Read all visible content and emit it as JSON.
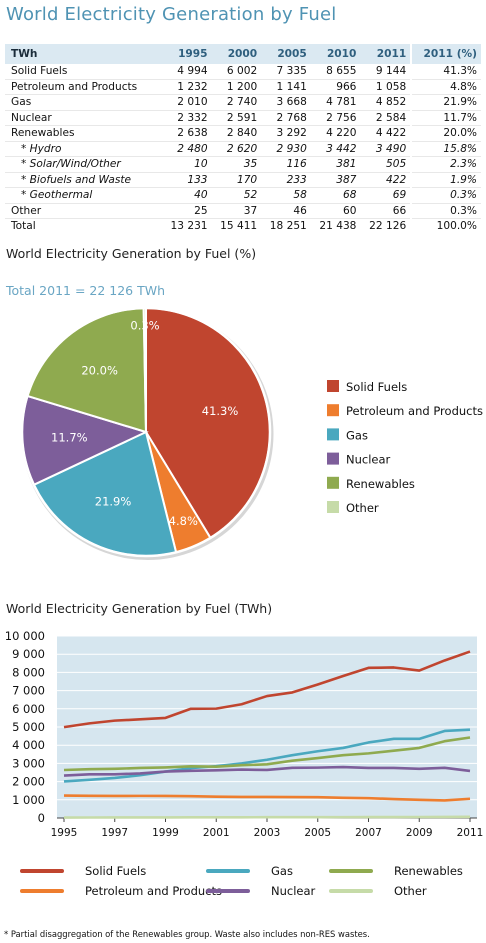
{
  "title": "World Electricity Generation by Fuel",
  "table": {
    "header": [
      "TWh",
      "1995",
      "2000",
      "2005",
      "2010",
      "2011",
      "2011 (%)"
    ],
    "rows": [
      {
        "label": "Solid Fuels",
        "values": [
          "4 994",
          "6 002",
          "7 335",
          "8 655",
          "9 144",
          "41.3%"
        ],
        "sub": false
      },
      {
        "label": "Petroleum and Products",
        "values": [
          "1 232",
          "1 200",
          "1 141",
          "966",
          "1 058",
          "4.8%"
        ],
        "sub": false
      },
      {
        "label": "Gas",
        "values": [
          "2 010",
          "2 740",
          "3 668",
          "4 781",
          "4 852",
          "21.9%"
        ],
        "sub": false
      },
      {
        "label": "Nuclear",
        "values": [
          "2 332",
          "2 591",
          "2 768",
          "2 756",
          "2 584",
          "11.7%"
        ],
        "sub": false
      },
      {
        "label": "Renewables",
        "values": [
          "2 638",
          "2 840",
          "3 292",
          "4 220",
          "4 422",
          "20.0%"
        ],
        "sub": false
      },
      {
        "label": "* Hydro",
        "values": [
          "2 480",
          "2 620",
          "2 930",
          "3 442",
          "3 490",
          "15.8%"
        ],
        "sub": true
      },
      {
        "label": "* Solar/Wind/Other",
        "values": [
          "10",
          "35",
          "116",
          "381",
          "505",
          "2.3%"
        ],
        "sub": true
      },
      {
        "label": "* Biofuels and Waste",
        "values": [
          "133",
          "170",
          "233",
          "387",
          "422",
          "1.9%"
        ],
        "sub": true
      },
      {
        "label": "* Geothermal",
        "values": [
          "40",
          "52",
          "58",
          "68",
          "69",
          "0.3%"
        ],
        "sub": true
      },
      {
        "label": "Other",
        "values": [
          "25",
          "37",
          "46",
          "60",
          "66",
          "0.3%"
        ],
        "sub": false
      },
      {
        "label": "Total",
        "values": [
          "13 231",
          "15 411",
          "18 251",
          "21 438",
          "22 126",
          "100.0%"
        ],
        "sub": false
      }
    ]
  },
  "pie_title": "World Electricity Generation by Fuel (%)",
  "pie_subtitle": "Total 2011 = 22 126 TWh",
  "line_title": "World Electricity Generation by Fuel (TWh)",
  "footnote": "* Partial disaggregation of the Renewables group. Waste also includes non-RES wastes.",
  "colors": {
    "solid": "#c0452f",
    "petroleum": "#ee7d2e",
    "gas": "#4aa8bf",
    "nuclear": "#7d5e9a",
    "renewables": "#8faa4f",
    "other": "#c6dba8",
    "plot_bg": "#d6e6ef",
    "subtitle": "#6aa6c4"
  },
  "chart_data": [
    {
      "type": "pie",
      "title": "World Electricity Generation by Fuel (%)",
      "subtitle": "Total 2011 = 22 126 TWh",
      "legend": "right",
      "slices": [
        {
          "name": "Solid Fuels",
          "value": 41.3,
          "label": "41.3%",
          "color_key": "solid"
        },
        {
          "name": "Petroleum and Products",
          "value": 4.8,
          "label": "4.8%",
          "color_key": "petroleum"
        },
        {
          "name": "Gas",
          "value": 21.9,
          "label": "21.9%",
          "color_key": "gas"
        },
        {
          "name": "Nuclear",
          "value": 11.7,
          "label": "11.7%",
          "color_key": "nuclear"
        },
        {
          "name": "Renewables",
          "value": 20.0,
          "label": "20.0%",
          "color_key": "renewables"
        },
        {
          "name": "Other",
          "value": 0.3,
          "label": "0.3%",
          "color_key": "other"
        }
      ]
    },
    {
      "type": "line",
      "title": "World Electricity Generation by Fuel (TWh)",
      "xlabel": "",
      "ylabel": "",
      "x": [
        1995,
        1996,
        1997,
        1998,
        1999,
        2000,
        2001,
        2002,
        2003,
        2004,
        2005,
        2006,
        2007,
        2008,
        2009,
        2010,
        2011
      ],
      "xticks": [
        "1995",
        "1997",
        "1999",
        "2001",
        "2003",
        "2005",
        "2007",
        "2009",
        "2011"
      ],
      "ylim": [
        0,
        10000
      ],
      "yticks": [
        "0",
        "1 000",
        "2 000",
        "3 000",
        "4 000",
        "5 000",
        "6 000",
        "7 000",
        "8 000",
        "9 000",
        "10 000"
      ],
      "grid": true,
      "legend": "bottom",
      "series": [
        {
          "name": "Solid Fuels",
          "color_key": "solid",
          "values": [
            4994,
            5200,
            5350,
            5420,
            5500,
            6002,
            6010,
            6250,
            6700,
            6900,
            7335,
            7800,
            8250,
            8270,
            8100,
            8655,
            9144
          ]
        },
        {
          "name": "Petroleum and Products",
          "color_key": "petroleum",
          "values": [
            1232,
            1220,
            1210,
            1215,
            1210,
            1200,
            1170,
            1160,
            1155,
            1150,
            1141,
            1110,
            1090,
            1040,
            1000,
            966,
            1058
          ]
        },
        {
          "name": "Gas",
          "color_key": "gas",
          "values": [
            2010,
            2100,
            2200,
            2350,
            2550,
            2740,
            2850,
            3000,
            3200,
            3450,
            3668,
            3850,
            4150,
            4350,
            4350,
            4781,
            4852
          ]
        },
        {
          "name": "Nuclear",
          "color_key": "nuclear",
          "values": [
            2332,
            2400,
            2400,
            2450,
            2550,
            2591,
            2620,
            2660,
            2640,
            2760,
            2768,
            2800,
            2750,
            2750,
            2700,
            2756,
            2584
          ]
        },
        {
          "name": "Renewables",
          "color_key": "renewables",
          "values": [
            2638,
            2680,
            2700,
            2750,
            2780,
            2840,
            2820,
            2900,
            2950,
            3150,
            3292,
            3450,
            3550,
            3700,
            3850,
            4220,
            4422
          ]
        },
        {
          "name": "Other",
          "color_key": "other",
          "values": [
            25,
            27,
            29,
            30,
            33,
            37,
            38,
            40,
            42,
            44,
            46,
            48,
            50,
            52,
            55,
            60,
            66
          ]
        }
      ]
    }
  ]
}
